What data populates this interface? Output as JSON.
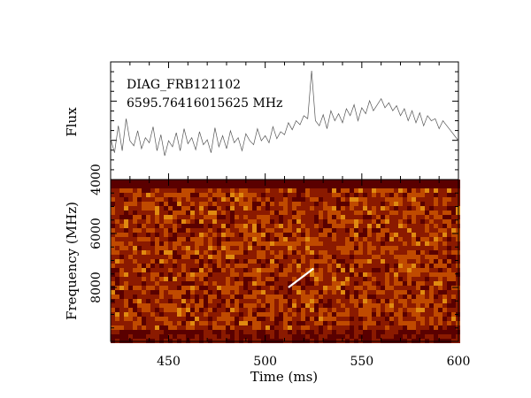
{
  "chart_data": [
    {
      "panel": "flux",
      "type": "line",
      "annotations": [
        "DIAG_FRB121102",
        "6595.76416015625 MHz"
      ],
      "ylabel": "Flux",
      "xlim": [
        420,
        600
      ],
      "x_ticks": [
        450,
        500,
        550,
        600
      ],
      "y_tick_labels": [],
      "series": [
        {
          "x": [
            420,
            422,
            424,
            426,
            428,
            430,
            432,
            434,
            436,
            438,
            440,
            442,
            444,
            446,
            448,
            450,
            452,
            454,
            456,
            458,
            460,
            462,
            464,
            466,
            468,
            470,
            472,
            474,
            476,
            478,
            480,
            482,
            484,
            486,
            488,
            490,
            492,
            494,
            496,
            498,
            500,
            502,
            504,
            506,
            508,
            510,
            512,
            514,
            516,
            518,
            520,
            522,
            524,
            526,
            528,
            530,
            532,
            534,
            536,
            538,
            540,
            542,
            544,
            546,
            548,
            550,
            552,
            554,
            556,
            558,
            560,
            562,
            564,
            566,
            568,
            570,
            572,
            574,
            576,
            578,
            580,
            582,
            584,
            586,
            588,
            590,
            592,
            594,
            596,
            598,
            600
          ],
          "y": [
            0.32,
            0.18,
            0.45,
            0.2,
            0.52,
            0.3,
            0.25,
            0.4,
            0.22,
            0.33,
            0.28,
            0.44,
            0.2,
            0.36,
            0.15,
            0.3,
            0.24,
            0.38,
            0.2,
            0.42,
            0.27,
            0.33,
            0.21,
            0.39,
            0.26,
            0.31,
            0.18,
            0.43,
            0.24,
            0.35,
            0.22,
            0.4,
            0.28,
            0.33,
            0.2,
            0.37,
            0.3,
            0.26,
            0.42,
            0.3,
            0.35,
            0.28,
            0.44,
            0.32,
            0.39,
            0.36,
            0.48,
            0.41,
            0.5,
            0.46,
            0.55,
            0.52,
            1.0,
            0.5,
            0.45,
            0.56,
            0.42,
            0.6,
            0.5,
            0.57,
            0.48,
            0.62,
            0.55,
            0.66,
            0.5,
            0.63,
            0.57,
            0.7,
            0.6,
            0.66,
            0.72,
            0.63,
            0.68,
            0.6,
            0.65,
            0.55,
            0.62,
            0.5,
            0.6,
            0.48,
            0.58,
            0.45,
            0.55,
            0.5,
            0.52,
            0.42,
            0.5,
            0.45,
            0.4,
            0.35,
            0.3
          ]
        }
      ]
    },
    {
      "panel": "waterfall",
      "type": "heatmap",
      "xlabel": "Time (ms)",
      "ylabel": "Frequency (MHz)",
      "xlim": [
        420,
        600
      ],
      "ylim": [
        10000,
        4000
      ],
      "x_ticks": [
        450,
        500,
        550,
        600
      ],
      "y_ticks": [
        4000,
        6000,
        8000
      ],
      "colormap": [
        "#5a0000",
        "#8b1a00",
        "#c04a00",
        "#e08a10",
        "#ffffff"
      ],
      "burst": {
        "t_start": 512,
        "t_end": 525,
        "f_start": 8000,
        "f_end": 7300
      }
    }
  ]
}
